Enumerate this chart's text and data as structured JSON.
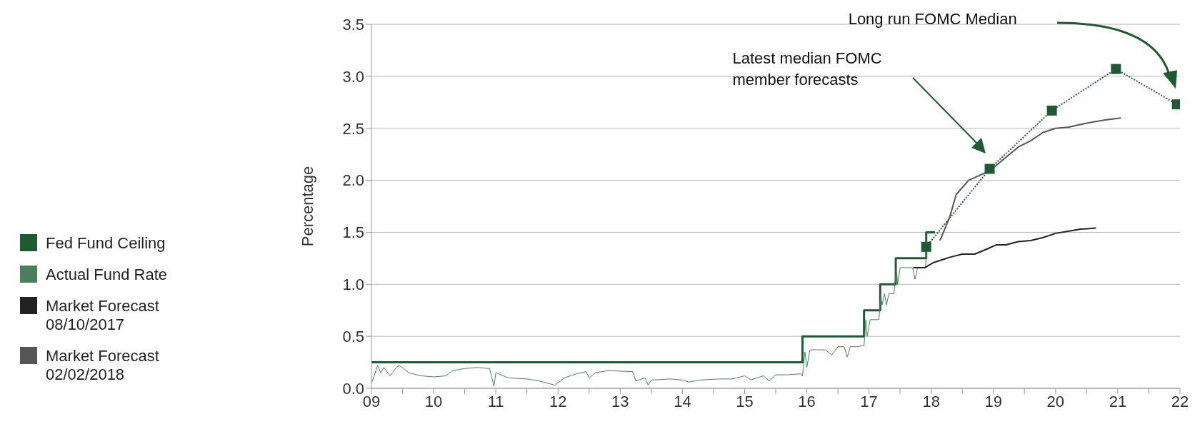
{
  "chart_data": {
    "type": "line",
    "ylabel": "Percentage",
    "legend": "left",
    "grid": "y",
    "xlim": [
      2009,
      2022
    ],
    "xticks": [
      {
        "value": 2009,
        "label": "09"
      },
      {
        "value": 2009.5,
        "label": null
      },
      {
        "value": 2010,
        "label": "10"
      },
      {
        "value": 2010.5,
        "label": null
      },
      {
        "value": 2011,
        "label": "11"
      },
      {
        "value": 2011.5,
        "label": null
      },
      {
        "value": 2012,
        "label": "12"
      },
      {
        "value": 2012.5,
        "label": null
      },
      {
        "value": 2013,
        "label": "13"
      },
      {
        "value": 2013.5,
        "label": null
      },
      {
        "value": 2014,
        "label": "14"
      },
      {
        "value": 2014.5,
        "label": null
      },
      {
        "value": 2015,
        "label": "15"
      },
      {
        "value": 2015.5,
        "label": null
      },
      {
        "value": 2016,
        "label": "16"
      },
      {
        "value": 2016.5,
        "label": null
      },
      {
        "value": 2017,
        "label": "17"
      },
      {
        "value": 2017.5,
        "label": null
      },
      {
        "value": 2018,
        "label": "18"
      },
      {
        "value": 2018.5,
        "label": null
      },
      {
        "value": 2019,
        "label": "19"
      },
      {
        "value": 2019.5,
        "label": null
      },
      {
        "value": 2020,
        "label": "20"
      },
      {
        "value": 2020.5,
        "label": null
      },
      {
        "value": 2021,
        "label": "21"
      },
      {
        "value": 2021.5,
        "label": null
      },
      {
        "value": 2022,
        "label": "22"
      }
    ],
    "ylim": [
      0,
      3.5
    ],
    "yticks": [
      {
        "value": 0,
        "label": "0.0"
      },
      {
        "value": 0.5,
        "label": "0.5"
      },
      {
        "value": 1,
        "label": "1.0"
      },
      {
        "value": 1.5,
        "label": "1.5"
      },
      {
        "value": 2,
        "label": "2.0"
      },
      {
        "value": 2.5,
        "label": "2.5"
      },
      {
        "value": 3,
        "label": "3.0"
      },
      {
        "value": 3.5,
        "label": "3.5"
      }
    ],
    "series": [
      {
        "name": "Fed Fund Ceiling",
        "type": "step",
        "color": "#1e5a32",
        "x": [
          2009,
          2015.93,
          2016.92,
          2017.18,
          2017.43,
          2017.92,
          2018.06
        ],
        "values": [
          0.25,
          0.5,
          0.75,
          1.0,
          1.25,
          1.5,
          1.5
        ]
      },
      {
        "name": "Actual Fund Rate",
        "color": "#4a7f5c",
        "x": [
          2009,
          2009.05,
          2009.1,
          2009.15,
          2009.2,
          2009.3,
          2009.4,
          2009.45,
          2009.6,
          2009.8,
          2010,
          2010.2,
          2010.3,
          2010.5,
          2010.7,
          2010.9,
          2010.97,
          2011,
          2011.2,
          2011.5,
          2011.7,
          2011.95,
          2012.1,
          2012.3,
          2012.45,
          2012.5,
          2012.6,
          2012.8,
          2013.2,
          2013.25,
          2013.4,
          2013.45,
          2013.5,
          2013.8,
          2014,
          2014.1,
          2014.3,
          2014.6,
          2014.8,
          2015,
          2015.1,
          2015.3,
          2015.4,
          2015.5,
          2015.7,
          2015.9,
          2015.93,
          2015.97,
          2016,
          2016.05,
          2016.3,
          2016.4,
          2016.5,
          2016.6,
          2016.65,
          2016.7,
          2016.8,
          2016.9,
          2016.92,
          2016.95,
          2016.97,
          2017.02,
          2017.16,
          2017.19,
          2017.21,
          2017.25,
          2017.28,
          2017.32,
          2017.4,
          2017.44,
          2017.46,
          2017.5,
          2017.55,
          2017.7,
          2017.74,
          2017.78,
          2017.91,
          2017.93
        ],
        "values": [
          0.05,
          0.13,
          0.22,
          0.15,
          0.2,
          0.12,
          0.2,
          0.22,
          0.15,
          0.12,
          0.11,
          0.12,
          0.17,
          0.19,
          0.2,
          0.19,
          0.02,
          0.15,
          0.1,
          0.09,
          0.07,
          0.03,
          0.1,
          0.14,
          0.16,
          0.1,
          0.15,
          0.17,
          0.16,
          0.07,
          0.1,
          0.03,
          0.08,
          0.09,
          0.08,
          0.06,
          0.08,
          0.09,
          0.09,
          0.12,
          0.08,
          0.12,
          0.07,
          0.13,
          0.13,
          0.14,
          0.12,
          0.35,
          0.2,
          0.37,
          0.37,
          0.32,
          0.4,
          0.4,
          0.3,
          0.4,
          0.4,
          0.41,
          0.41,
          0.66,
          0.5,
          0.66,
          0.66,
          0.91,
          0.8,
          0.91,
          0.8,
          0.91,
          0.91,
          1.16,
          1.0,
          1.16,
          1.16,
          1.16,
          1.05,
          1.16,
          1.16,
          1.42
        ]
      },
      {
        "name": "Market Forecast 08/10/2017",
        "color": "#222222",
        "x": [
          2017.71,
          2017.9,
          2018.04,
          2018.2,
          2018.3,
          2018.5,
          2018.7,
          2018.9,
          2019.05,
          2019.2,
          2019.4,
          2019.6,
          2019.8,
          2020,
          2020.2,
          2020.4,
          2020.65
        ],
        "values": [
          1.16,
          1.16,
          1.21,
          1.24,
          1.26,
          1.29,
          1.29,
          1.34,
          1.38,
          1.38,
          1.41,
          1.42,
          1.45,
          1.49,
          1.51,
          1.53,
          1.54
        ]
      },
      {
        "name": "Market Forecast 02/02/2018",
        "color": "#555555",
        "x": [
          2018.14,
          2018.3,
          2018.4,
          2018.6,
          2018.9,
          2019,
          2019.2,
          2019.4,
          2019.6,
          2019.8,
          2020,
          2020.2,
          2020.5,
          2020.8,
          2021.05
        ],
        "values": [
          1.42,
          1.65,
          1.86,
          2.0,
          2.08,
          2.12,
          2.22,
          2.32,
          2.38,
          2.46,
          2.5,
          2.51,
          2.55,
          2.58,
          2.6
        ]
      },
      {
        "color": "#1e5a32",
        "marker": "square",
        "line_style": "dotted",
        "x": [
          2017.92,
          2018.94,
          2019.94,
          2020.97,
          2021.95
        ],
        "values": [
          1.36,
          2.11,
          2.67,
          3.07,
          2.73
        ]
      }
    ],
    "annotations": [
      "Latest median FOMC member forecasts",
      "Long run FOMC Median"
    ]
  }
}
